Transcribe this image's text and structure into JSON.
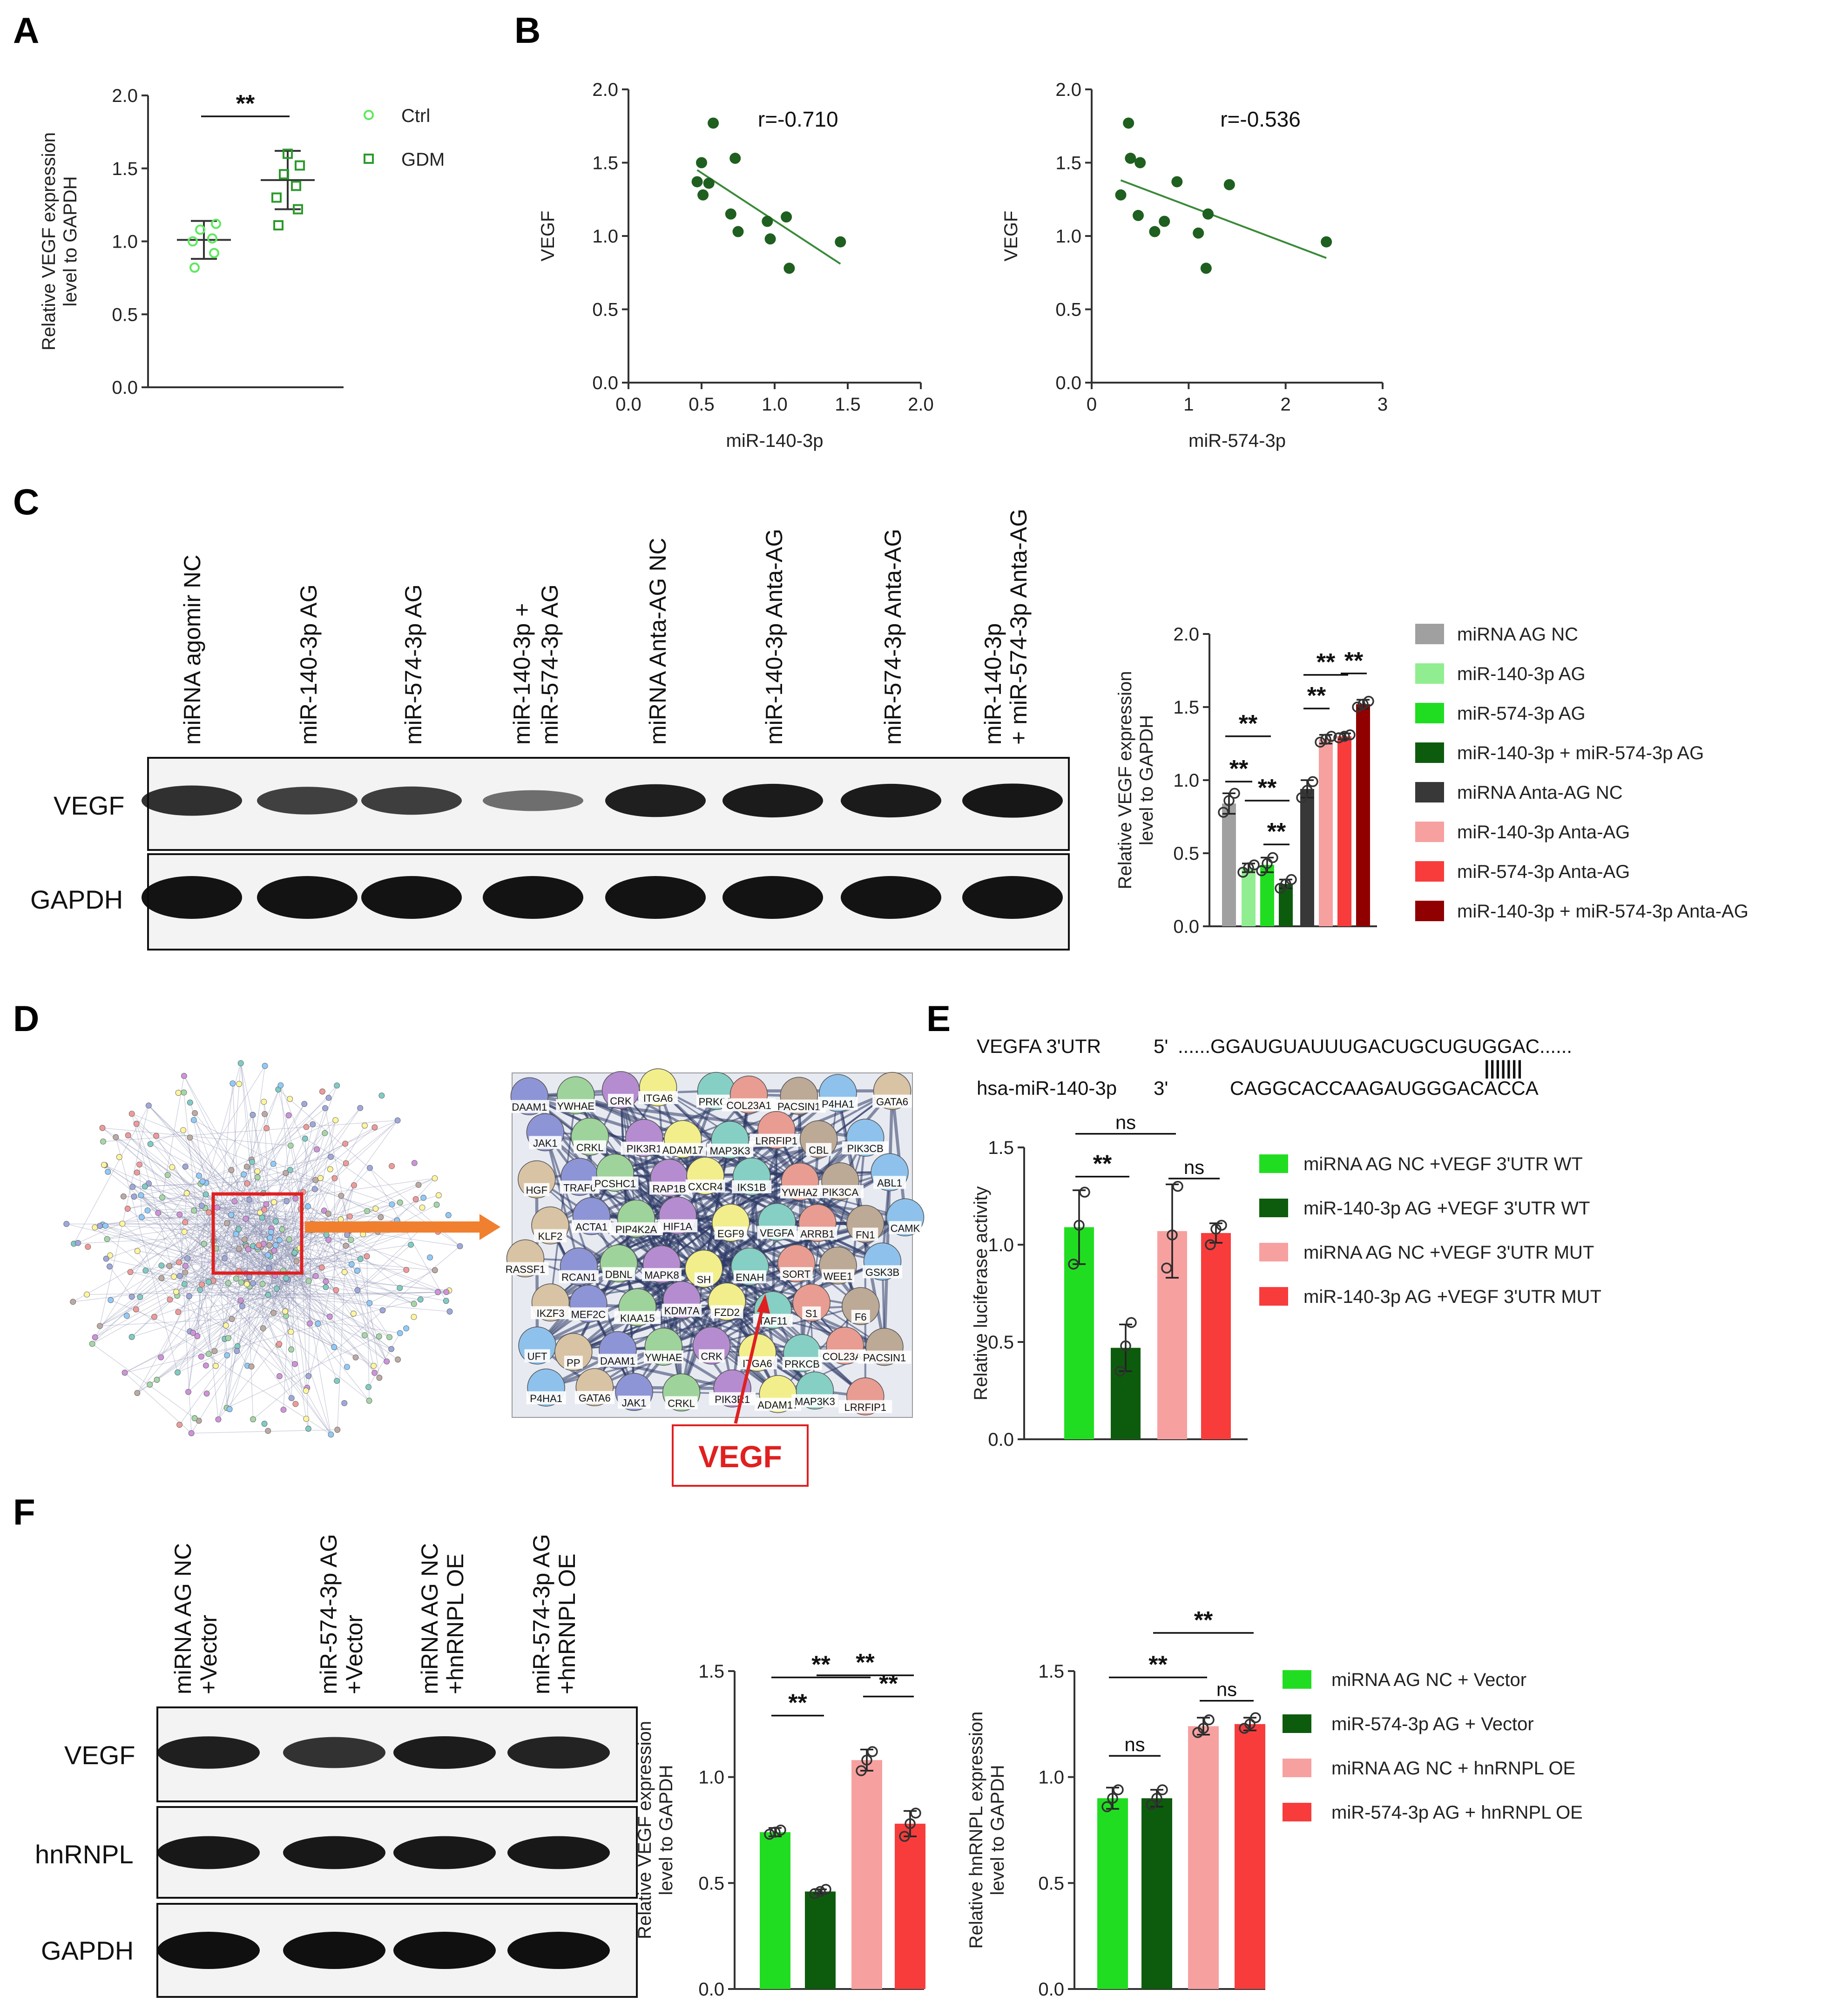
{
  "panels": {
    "A": "A",
    "B": "B",
    "C": "C",
    "D": "D",
    "E": "E",
    "F": "F"
  },
  "colors": {
    "ctrl": "#5ee85e",
    "gdm": "#2a9a2a",
    "scatter": "#1f5f1f",
    "fitline": "#3a8a3a",
    "ag_nc": "#a0a0a0",
    "light_green": "#90ee90",
    "bright_green": "#21dd21",
    "dark_green": "#0d5c0d",
    "dark_gray": "#383838",
    "pink": "#f7a0a0",
    "red": "#f83c3c",
    "dark_red": "#900000",
    "vegf_box": "#e02020",
    "arrow": "#f08030"
  },
  "chart_data": [
    {
      "id": "A",
      "type": "scatter",
      "title": "",
      "xlabel": "",
      "ylabel": "Relative VEGF expression level to GAPDH",
      "ylabel_lines": [
        "Relative VEGF expression",
        "level to GAPDH"
      ],
      "ylim": [
        0,
        2.0
      ],
      "yticks": [
        "0.0",
        "0.5",
        "1.0",
        "1.5",
        "2.0"
      ],
      "series": [
        {
          "name": "Ctrl",
          "mean": 1.01,
          "sd": 0.13,
          "points": [
            0.82,
            0.92,
            1.0,
            1.02,
            1.08,
            1.12
          ]
        },
        {
          "name": "GDM",
          "mean": 1.42,
          "sd": 0.2,
          "points": [
            1.11,
            1.22,
            1.3,
            1.38,
            1.46,
            1.52,
            1.6
          ]
        }
      ],
      "significance": [
        "**"
      ]
    },
    {
      "id": "B1",
      "type": "scatter",
      "title": "",
      "xlabel": "miR-140-3p",
      "ylabel": "VEGF",
      "xlim": [
        0,
        2.0
      ],
      "ylim": [
        0,
        2.0
      ],
      "xticks": [
        "0.0",
        "0.5",
        "1.0",
        "1.5",
        "2.0"
      ],
      "yticks": [
        "0.0",
        "0.5",
        "1.0",
        "1.5",
        "2.0"
      ],
      "annotation": "r=-0.710",
      "x": [
        0.47,
        0.5,
        0.51,
        0.55,
        0.58,
        0.7,
        0.73,
        0.75,
        0.95,
        0.97,
        1.08,
        1.1,
        1.45
      ],
      "y": [
        1.37,
        1.5,
        1.28,
        1.36,
        1.77,
        1.15,
        1.53,
        1.03,
        1.1,
        0.98,
        1.13,
        0.78,
        0.96
      ],
      "fit": {
        "x": [
          0.47,
          1.45
        ],
        "y": [
          1.45,
          0.81
        ]
      }
    },
    {
      "id": "B2",
      "type": "scatter",
      "title": "",
      "xlabel": "miR-574-3p",
      "ylabel": "VEGF",
      "xlim": [
        0,
        3
      ],
      "ylim": [
        0,
        2.0
      ],
      "xticks": [
        "0",
        "1",
        "2",
        "3"
      ],
      "yticks": [
        "0.0",
        "0.5",
        "1.0",
        "1.5",
        "2.0"
      ],
      "annotation": "r=-0.536",
      "x": [
        0.3,
        0.38,
        0.4,
        0.48,
        0.5,
        0.65,
        0.75,
        0.88,
        1.1,
        1.18,
        1.2,
        1.42,
        2.42
      ],
      "y": [
        1.28,
        1.77,
        1.53,
        1.14,
        1.5,
        1.03,
        1.1,
        1.37,
        1.02,
        0.78,
        1.15,
        1.35,
        0.96
      ],
      "fit": {
        "x": [
          0.3,
          2.42
        ],
        "y": [
          1.38,
          0.85
        ]
      }
    },
    {
      "id": "C",
      "type": "bar",
      "title": "",
      "xlabel": "",
      "ylabel": "Relative VEGF expression level to GAPDH",
      "ylabel_lines": [
        "Relative VEGF expression",
        "level to GAPDH"
      ],
      "ylim": [
        0,
        2.0
      ],
      "yticks": [
        "0.0",
        "0.5",
        "1.0",
        "1.5",
        "2.0"
      ],
      "categories": [
        "miRNA AG NC",
        "miR-140-3p AG",
        "miR-574-3p AG",
        "miR-140-3p + miR-574-3p AG",
        "miRNA Anta-AG NC",
        "miR-140-3p Anta-AG",
        "miR-574-3p Anta-AG",
        "miR-140-3p + miR-574-3p Anta-AG"
      ],
      "values": [
        0.84,
        0.4,
        0.42,
        0.29,
        0.94,
        1.28,
        1.3,
        1.52
      ],
      "errors": [
        0.07,
        0.03,
        0.05,
        0.03,
        0.06,
        0.03,
        0.02,
        0.03
      ],
      "points": [
        [
          0.78,
          0.86,
          0.91
        ],
        [
          0.37,
          0.4,
          0.42
        ],
        [
          0.38,
          0.43,
          0.47
        ],
        [
          0.26,
          0.29,
          0.32
        ],
        [
          0.88,
          0.93,
          0.99
        ],
        [
          1.26,
          1.28,
          1.3
        ],
        [
          1.29,
          1.3,
          1.31
        ],
        [
          1.5,
          1.52,
          1.54
        ]
      ],
      "color_keys": [
        "ag_nc",
        "light_green",
        "bright_green",
        "dark_green",
        "dark_gray",
        "pink",
        "red",
        "dark_red"
      ],
      "significance": [
        "**",
        "**",
        "**",
        "**",
        "**",
        "**",
        "**"
      ]
    },
    {
      "id": "E",
      "type": "bar",
      "title": "",
      "xlabel": "",
      "ylabel": "Relative luciferase activity",
      "ylim": [
        0,
        1.5
      ],
      "yticks": [
        "0.0",
        "0.5",
        "1.0",
        "1.5"
      ],
      "categories": [
        "miRNA AG NC +VEGF 3'UTR WT",
        "miR-140-3p AG +VEGF 3'UTR WT",
        "miRNA AG NC +VEGF 3'UTR MUT",
        "miR-140-3p AG +VEGF 3'UTR MUT"
      ],
      "values": [
        1.09,
        0.47,
        1.07,
        1.06
      ],
      "errors": [
        0.19,
        0.12,
        0.24,
        0.05
      ],
      "points": [
        [
          0.9,
          1.1,
          1.27
        ],
        [
          0.35,
          0.48,
          0.6
        ],
        [
          0.88,
          1.05,
          1.3
        ],
        [
          1.0,
          1.08,
          1.1
        ]
      ],
      "color_keys": [
        "bright_green",
        "dark_green",
        "pink",
        "red"
      ],
      "significance": [
        "**",
        "ns",
        "ns"
      ]
    },
    {
      "id": "F1",
      "type": "bar",
      "title": "",
      "xlabel": "",
      "ylabel": "Relative VEGF expression level to GAPDH",
      "ylabel_lines": [
        "Relative VEGF expression",
        "level to GAPDH"
      ],
      "ylim": [
        0,
        1.5
      ],
      "yticks": [
        "0.0",
        "0.5",
        "1.0",
        "1.5"
      ],
      "categories": [
        "miRNA AG NC + Vector",
        "miR-574-3p AG + Vector",
        "miRNA AG NC + hnRNPL OE",
        "miR-574-3p AG + hnRNPL OE"
      ],
      "values": [
        0.74,
        0.46,
        1.08,
        0.78
      ],
      "errors": [
        0.02,
        0.01,
        0.05,
        0.06
      ],
      "points": [
        [
          0.73,
          0.74,
          0.75
        ],
        [
          0.45,
          0.46,
          0.47
        ],
        [
          1.03,
          1.08,
          1.12
        ],
        [
          0.72,
          0.78,
          0.83
        ]
      ],
      "color_keys": [
        "bright_green",
        "dark_green",
        "pink",
        "red"
      ],
      "significance": [
        "**",
        "**",
        "**",
        "**"
      ]
    },
    {
      "id": "F2",
      "type": "bar",
      "title": "",
      "xlabel": "",
      "ylabel": "Relative hnRNPL expression level to GAPDH",
      "ylabel_lines": [
        "Relative hnRNPL expression",
        "level to GAPDH"
      ],
      "ylim": [
        0,
        1.5
      ],
      "yticks": [
        "0.0",
        "0.5",
        "1.0",
        "1.5"
      ],
      "categories": [
        "miRNA AG NC + Vector",
        "miR-574-3p AG + Vector",
        "miRNA AG NC + hnRNPL OE",
        "miR-574-3p AG + hnRNPL OE"
      ],
      "values": [
        0.9,
        0.9,
        1.24,
        1.25
      ],
      "errors": [
        0.05,
        0.04,
        0.04,
        0.03
      ],
      "points": [
        [
          0.86,
          0.9,
          0.94
        ],
        [
          0.87,
          0.9,
          0.94
        ],
        [
          1.21,
          1.23,
          1.27
        ],
        [
          1.23,
          1.25,
          1.28
        ]
      ],
      "color_keys": [
        "bright_green",
        "dark_green",
        "pink",
        "red"
      ],
      "significance": [
        "ns",
        "ns",
        "**",
        "**"
      ]
    }
  ],
  "blot_C": {
    "lanes": [
      "miRNA agomir NC",
      "miR-140-3p AG",
      "miR-574-3p AG",
      "miR-140-3p +",
      "miR-574-3p AG",
      "miRNA Anta-AG NC",
      "miR-140-3p Anta-AG",
      "miR-574-3p Anta-AG",
      "miR-140-3p",
      "+ miR-574-3p Anta-AG"
    ],
    "rows": [
      "VEGF",
      "GAPDH"
    ],
    "intensity": {
      "VEGF": [
        0.82,
        0.72,
        0.74,
        0.45,
        0.92,
        0.95,
        0.95,
        0.97
      ],
      "GAPDH": [
        1,
        1,
        1,
        1,
        1,
        1,
        1,
        1
      ]
    }
  },
  "blot_F": {
    "lanes": [
      "miRNA AG NC",
      "+Vector",
      "miR-574-3p AG",
      "+Vector",
      "miRNA AG NC",
      "+hnRNPL OE",
      "miR-574-3p AG",
      "+hnRNPL OE"
    ],
    "rows": [
      "VEGF",
      "hnRNPL",
      "GAPDH"
    ],
    "intensity": {
      "VEGF": [
        0.9,
        0.78,
        0.92,
        0.88
      ],
      "hnRNPL": [
        0.95,
        0.95,
        0.95,
        0.95
      ],
      "GAPDH": [
        1,
        1,
        1,
        1
      ]
    }
  },
  "network_D": {
    "zoom_label": "VEGF",
    "nodes": [
      "DAAM1",
      "YWHAE",
      "CRK",
      "ITGA6",
      "PRKCB",
      "COL23A1",
      "PACSIN1",
      "P4HA1",
      "GATA6",
      "JAK1",
      "CRKL",
      "PIK3R1",
      "ADAM17",
      "MAP3K3",
      "LRRFIP1",
      "CBL",
      "PIK3CB",
      "HGF",
      "TRAF6",
      "PCSHC1",
      "RAP1B",
      "CXCR4",
      "IKS1B",
      "YWHAZ",
      "PIK3CA",
      "ABL1",
      "KLF2",
      "ACTA1",
      "PIP4K2A",
      "HIF1A",
      "EGF9",
      "VEGFA",
      "ARRB1",
      "FN1",
      "CAMK",
      "RASSF1",
      "RCAN1",
      "DBNL",
      "MAPK8",
      "SH",
      "ENAH",
      "SORT",
      "WEE1",
      "GSK3B",
      "IKZF3",
      "MEF2C",
      "KIAA15",
      "KDM7A",
      "FZD2",
      "TAF11",
      "S1",
      "F6",
      "UFT",
      "PP"
    ]
  },
  "sequence_E": {
    "row1_name": "VEGFA 3'UTR",
    "row1_end": "5'",
    "row1_seq": "......GGAUGUAUUUGACUGCUGUGGAC......",
    "row2_name": "hsa-miR-140-3p",
    "row2_end": "3'",
    "row2_seq": "CAGGCACCAAGAUGGGACACCA",
    "pairing": "|||||||"
  }
}
